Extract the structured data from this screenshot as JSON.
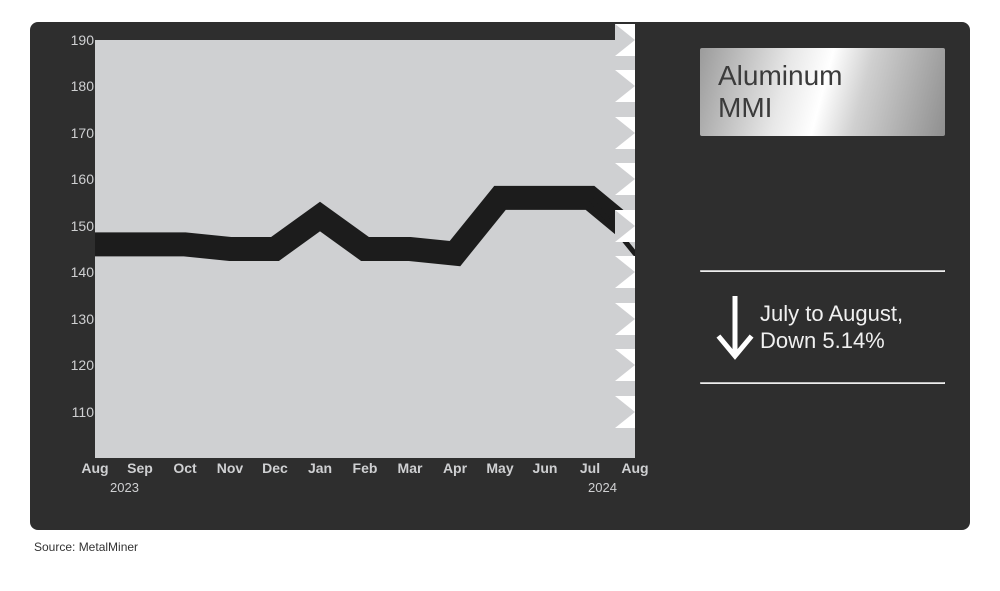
{
  "chart": {
    "type": "line",
    "title_lines": [
      "Aluminum",
      "MMI"
    ],
    "title_fontsize": 28,
    "title_box_gradient": [
      "#9b9b9b",
      "#e8e8e8",
      "#ffffff",
      "#d0d0d0",
      "#8f8f8f"
    ],
    "plot_background": "#cfd0d2",
    "panel_background": "#2e2e2e",
    "line_color": "#1c1c1c",
    "line_width": 24,
    "projection_color": "#1c1c1c",
    "projection_width": 5,
    "y": {
      "min": 100,
      "max": 190,
      "ticks": [
        110,
        120,
        130,
        140,
        150,
        160,
        170,
        180,
        190
      ]
    },
    "x_categories": [
      "Aug",
      "Sep",
      "Oct",
      "Nov",
      "Dec",
      "Jan",
      "Feb",
      "Mar",
      "Apr",
      "May",
      "Jun",
      "Jul",
      "Aug"
    ],
    "x_year_left": "2023",
    "x_year_right": "2024",
    "values": [
      146,
      146,
      146,
      145,
      145,
      152,
      145,
      145,
      144,
      156,
      156,
      156,
      148
    ],
    "projection": {
      "from_index": 11,
      "to_index": 12,
      "to_value": 144
    },
    "right_notches_background": "#ffffff",
    "right_notches_arrow": "#cfd0d2"
  },
  "change": {
    "direction": "down",
    "arrow_color": "#ffffff",
    "text": "July to August, Down 5.14%",
    "fontsize": 22,
    "rule_color": "#bdbdbd"
  },
  "footnote": "Source: MetalMiner"
}
